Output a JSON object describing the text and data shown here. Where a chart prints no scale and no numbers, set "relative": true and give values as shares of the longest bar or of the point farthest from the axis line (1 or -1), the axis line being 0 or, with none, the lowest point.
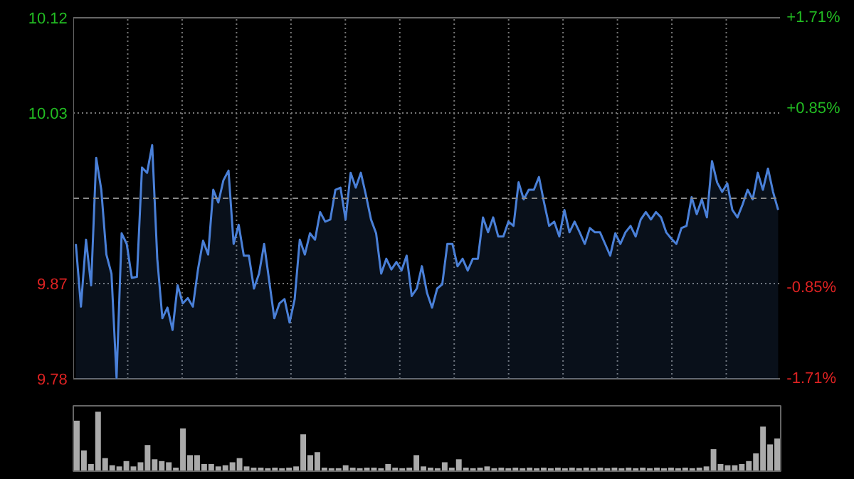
{
  "chart_data": [
    {
      "type": "area",
      "categories": [
        null,
        null,
        null,
        null,
        null,
        null,
        null,
        null,
        null,
        null,
        null,
        null,
        null,
        null,
        null,
        null,
        null,
        null,
        null,
        null,
        null,
        null,
        null,
        null,
        null,
        null,
        null,
        null,
        null,
        null,
        null,
        null,
        null,
        null,
        null,
        null,
        null,
        null,
        null,
        null,
        null,
        null,
        null,
        null,
        null,
        null,
        null,
        null,
        null,
        null,
        null,
        null,
        null,
        null,
        null,
        null,
        null,
        null,
        null,
        null,
        null,
        null,
        null,
        null,
        null,
        null,
        null,
        null,
        null,
        null,
        null,
        null,
        null,
        null,
        null,
        null,
        null,
        null,
        null,
        null,
        null,
        null,
        null,
        null,
        null,
        null,
        null,
        null,
        null,
        null,
        null,
        null,
        null,
        null,
        null,
        null,
        null,
        null,
        null,
        null,
        null,
        null,
        null,
        null,
        null,
        null,
        null,
        null,
        null,
        null,
        null,
        null,
        null,
        null,
        null,
        null,
        null,
        null,
        null,
        null,
        null,
        null,
        null,
        null,
        null,
        null,
        null,
        null,
        null,
        null,
        null,
        null,
        null,
        null,
        null,
        null,
        null,
        null,
        null
      ],
      "series": [
        {
          "color": "#4a80d8",
          "values": [
            9.907,
            9.848,
            9.911,
            9.868,
            9.988,
            9.958,
            9.897,
            9.879,
            9.781,
            9.917,
            9.907,
            9.875,
            9.876,
            9.979,
            9.974,
            10.0,
            9.893,
            9.837,
            9.847,
            9.826,
            9.868,
            9.851,
            9.856,
            9.848,
            9.883,
            9.91,
            9.897,
            9.958,
            9.946,
            9.967,
            9.976,
            9.907,
            9.925,
            9.896,
            9.896,
            9.865,
            9.879,
            9.907,
            9.872,
            9.837,
            9.851,
            9.855,
            9.833,
            9.855,
            9.911,
            9.897,
            9.917,
            9.911,
            9.937,
            9.928,
            9.93,
            9.958,
            9.96,
            9.93,
            9.974,
            9.96,
            9.974,
            9.953,
            9.93,
            9.917,
            9.879,
            9.893,
            9.883,
            9.89,
            9.882,
            9.896,
            9.858,
            9.865,
            9.886,
            9.861,
            9.847,
            9.865,
            9.869,
            9.907,
            9.907,
            9.886,
            9.893,
            9.882,
            9.893,
            9.893,
            9.932,
            9.918,
            9.932,
            9.914,
            9.914,
            9.928,
            9.924,
            9.965,
            9.949,
            9.958,
            9.958,
            9.97,
            9.946,
            9.924,
            9.928,
            9.914,
            9.939,
            9.918,
            9.928,
            9.918,
            9.907,
            9.922,
            9.918,
            9.918,
            9.907,
            9.896,
            9.917,
            9.907,
            9.918,
            9.924,
            9.914,
            9.93,
            9.937,
            9.93,
            9.937,
            9.932,
            9.918,
            9.912,
            9.907,
            9.922,
            9.924,
            9.951,
            9.935,
            9.949,
            9.932,
            9.985,
            9.965,
            9.956,
            9.964,
            9.939,
            9.932,
            9.944,
            9.958,
            9.949,
            9.974,
            9.958,
            9.978,
            9.956,
            9.939
          ]
        }
      ],
      "ylim": [
        9.78,
        10.12
      ],
      "yticks": [
        9.78,
        9.87,
        10.03,
        10.12
      ],
      "y2lim": [
        -1.71,
        1.71
      ],
      "y2ticks": [
        {
          "value": -1.71,
          "label": "-1.71%"
        },
        {
          "value": -0.85,
          "label": "-0.85%"
        },
        {
          "value": 0.85,
          "label": "+0.85%"
        },
        {
          "value": 1.71,
          "label": "+1.71%"
        }
      ],
      "ref_lines": [
        {
          "axis": "y",
          "value": 9.95,
          "color": "#888888",
          "line_style": "dashed"
        }
      ],
      "grid": true
    },
    {
      "type": "bar",
      "relative": true,
      "categories": [
        null,
        null,
        null,
        null,
        null,
        null,
        null,
        null,
        null,
        null,
        null,
        null,
        null,
        null,
        null,
        null,
        null,
        null,
        null,
        null,
        null,
        null,
        null,
        null,
        null,
        null,
        null,
        null,
        null,
        null,
        null,
        null,
        null,
        null,
        null,
        null,
        null,
        null,
        null,
        null,
        null,
        null,
        null,
        null,
        null,
        null,
        null,
        null,
        null,
        null,
        null,
        null,
        null,
        null,
        null,
        null,
        null,
        null,
        null,
        null,
        null,
        null,
        null,
        null,
        null,
        null,
        null,
        null,
        null,
        null,
        null,
        null,
        null,
        null,
        null,
        null,
        null,
        null,
        null,
        null,
        null,
        null,
        null,
        null,
        null,
        null,
        null,
        null,
        null,
        null,
        null,
        null,
        null,
        null,
        null,
        null,
        null,
        null,
        null,
        null
      ],
      "values": [
        0.85,
        0.35,
        0.12,
        1,
        0.22,
        0.1,
        0.08,
        0.17,
        0.08,
        0.15,
        0.44,
        0.2,
        0.17,
        0.15,
        0.06,
        0.72,
        0.27,
        0.27,
        0.12,
        0.12,
        0.08,
        0.1,
        0.15,
        0.22,
        0.08,
        0.06,
        0.06,
        0.05,
        0.06,
        0.05,
        0.06,
        0.08,
        0.62,
        0.27,
        0.32,
        0.06,
        0.05,
        0.05,
        0.1,
        0.06,
        0.05,
        0.06,
        0.06,
        0.05,
        0.12,
        0.06,
        0.05,
        0.06,
        0.27,
        0.08,
        0.06,
        0.05,
        0.15,
        0.06,
        0.2,
        0.06,
        0.05,
        0.06,
        0.08,
        0.05,
        0.06,
        0.05,
        0.06,
        0.05,
        0.06,
        0.05,
        0.06,
        0.05,
        0.06,
        0.05,
        0.06,
        0.05,
        0.06,
        0.05,
        0.06,
        0.05,
        0.06,
        0.05,
        0.06,
        0.05,
        0.06,
        0.05,
        0.06,
        0.05,
        0.06,
        0.05,
        0.06,
        0.05,
        0.06,
        0.08,
        0.37,
        0.12,
        0.1,
        0.1,
        0.12,
        0.17,
        0.3,
        0.75,
        0.45,
        0.55
      ],
      "color": "#aaaaaa"
    }
  ]
}
